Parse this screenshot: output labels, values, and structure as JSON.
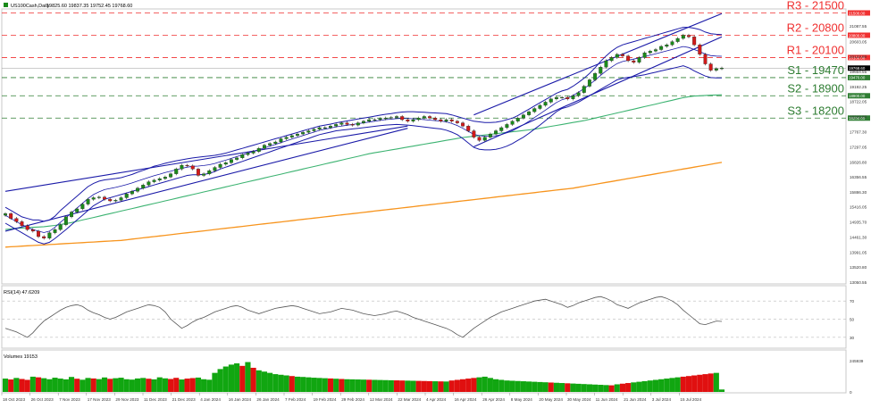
{
  "header": {
    "symbol_text": "US100Cash,Daily",
    "ohlc_text": "19825.60 19837.35 19752.45 19768.60",
    "icon": "chart-icon"
  },
  "colors": {
    "resistance": "#f03030",
    "support": "#2e7d32",
    "channel": "#1a1aa8",
    "bollinger": "#1a1aa8",
    "ma_green": "#3cb371",
    "ma_orange": "#f7941d",
    "candle_up": "#1a8a1a",
    "candle_down": "#d11a1a",
    "volume_up": "#11a611",
    "volume_down": "#e01010",
    "rsi_line": "#555555"
  },
  "chart_data": [
    {
      "type": "line",
      "title": "",
      "y_ticks": [
        "21087.55",
        "20603.05",
        "20133.80",
        "19664.55",
        "19192.25",
        "18722.05",
        "18249.80",
        "17767.30",
        "17297.05",
        "16826.80",
        "16356.55",
        "15886.30",
        "15416.05",
        "14935.70",
        "14461.30",
        "13991.05",
        "13520.80",
        "13050.55"
      ],
      "ylim": [
        13050.55,
        21570
      ],
      "x_tick_labels": [
        "18 Oct 2023",
        "26 Oct 2023",
        "7 Nov 2023",
        "17 Nov 2023",
        "29 Nov 2023",
        "11 Dec 2023",
        "21 Dec 2023",
        "4 Jan 2024",
        "16 Jan 2024",
        "26 Jan 2024",
        "7 Feb 2024",
        "19 Feb 2024",
        "29 Feb 2024",
        "12 Mar 2024",
        "22 Mar 2024",
        "4 Apr 2024",
        "16 Apr 2024",
        "26 Apr 2024",
        "8 May 2024",
        "20 May 2024",
        "30 May 2024",
        "11 Jun 2024",
        "21 Jun 2024",
        "3 Jul 2024",
        "15 Jul 2024"
      ],
      "levels": [
        {
          "name": "R3 - 21500",
          "tag": "21500.00",
          "value": 21500,
          "kind": "resistance"
        },
        {
          "name": "R2 - 20800",
          "tag": "20800.00",
          "value": 20800,
          "kind": "resistance"
        },
        {
          "name": "R1 - 20100",
          "tag": "20100.00",
          "value": 20100,
          "kind": "resistance"
        },
        {
          "name": "S1 - 19470",
          "tag": "19470.00",
          "value": 19470,
          "kind": "support"
        },
        {
          "name": "S2 - 18900",
          "tag": "18900.00",
          "value": 18900,
          "kind": "support"
        },
        {
          "name": "S3 - 18200",
          "tag": "18200.00",
          "value": 18200,
          "kind": "support"
        }
      ],
      "price_tag": "19768.60",
      "price_value": 19768.6,
      "closes": [
        15200,
        15050,
        14950,
        14820,
        14700,
        14650,
        14480,
        14430,
        14600,
        14700,
        14850,
        15100,
        15250,
        15350,
        15500,
        15650,
        15700,
        15720,
        15650,
        15600,
        15620,
        15700,
        15820,
        15900,
        16000,
        16100,
        16200,
        16250,
        16300,
        16350,
        16450,
        16600,
        16720,
        16700,
        16600,
        16400,
        16450,
        16550,
        16650,
        16750,
        16800,
        16900,
        16950,
        17050,
        17100,
        17150,
        17250,
        17350,
        17400,
        17450,
        17550,
        17600,
        17650,
        17700,
        17750,
        17800,
        17850,
        17900,
        17900,
        17950,
        18000,
        18050,
        18000,
        17980,
        18050,
        18100,
        18150,
        18150,
        18180,
        18200,
        18220,
        18250,
        18150,
        18100,
        18150,
        18200,
        18250,
        18200,
        18150,
        18100,
        18150,
        18100,
        18050,
        17950,
        17800,
        17600,
        17500,
        17600,
        17700,
        17800,
        17900,
        18000,
        18100,
        18200,
        18300,
        18400,
        18500,
        18600,
        18700,
        18800,
        18850,
        18850,
        18800,
        18900,
        19000,
        19200,
        19400,
        19600,
        19800,
        20000,
        20100,
        20200,
        20150,
        20000,
        19950,
        20100,
        20250,
        20300,
        20350,
        20450,
        20500,
        20600,
        20700,
        20800,
        20750,
        20500,
        20200,
        19900,
        19700,
        19750,
        19768.6
      ],
      "bb_upper": [
        15400,
        15300,
        15200,
        15100,
        15050,
        15000,
        15000,
        14960,
        15000,
        15120,
        15300,
        15450,
        15600,
        15750,
        15900,
        16050,
        16150,
        16220,
        16260,
        16280,
        16300,
        16330,
        16380,
        16430,
        16500,
        16560,
        16620,
        16690,
        16730,
        16780,
        16820,
        16860,
        16890,
        16920,
        16950,
        16970,
        16990,
        17010,
        17030,
        17060,
        17100,
        17150,
        17200,
        17250,
        17300,
        17350,
        17400,
        17450,
        17500,
        17550,
        17600,
        17650,
        17700,
        17750,
        17800,
        17850,
        17900,
        17950,
        17980,
        18010,
        18050,
        18080,
        18110,
        18140,
        18170,
        18200,
        18230,
        18260,
        18290,
        18320,
        18340,
        18370,
        18390,
        18400,
        18400,
        18390,
        18380,
        18370,
        18360,
        18350,
        18340,
        18300,
        18250,
        18200,
        18150,
        18100,
        18080,
        18060,
        18060,
        18070,
        18100,
        18150,
        18200,
        18280,
        18380,
        18480,
        18580,
        18680,
        18780,
        18880,
        18980,
        19050,
        19100,
        19200,
        19320,
        19450,
        19600,
        19780,
        19980,
        20150,
        20300,
        20420,
        20500,
        20550,
        20600,
        20650,
        20700,
        20750,
        20800,
        20850,
        20900,
        20950,
        21000,
        21050,
        21050,
        21020,
        20980,
        20900,
        20850,
        20830,
        20820
      ],
      "bb_lower": [
        14900,
        14800,
        14700,
        14600,
        14500,
        14400,
        14300,
        14250,
        14300,
        14420,
        14560,
        14700,
        14850,
        15000,
        15150,
        15300,
        15450,
        15550,
        15650,
        15700,
        15750,
        15800,
        15850,
        15900,
        15950,
        16000,
        16050,
        16100,
        16150,
        16200,
        16250,
        16300,
        16350,
        16400,
        16420,
        16420,
        16430,
        16460,
        16520,
        16600,
        16660,
        16720,
        16780,
        16840,
        16900,
        16960,
        17020,
        17080,
        17140,
        17200,
        17260,
        17320,
        17380,
        17440,
        17500,
        17560,
        17620,
        17680,
        17720,
        17760,
        17800,
        17820,
        17840,
        17860,
        17880,
        17900,
        17920,
        17940,
        17960,
        17980,
        17990,
        18000,
        17990,
        17980,
        17960,
        17940,
        17920,
        17900,
        17880,
        17860,
        17820,
        17760,
        17680,
        17560,
        17420,
        17280,
        17220,
        17200,
        17200,
        17220,
        17260,
        17320,
        17400,
        17500,
        17600,
        17720,
        17850,
        17980,
        18120,
        18260,
        18400,
        18500,
        18550,
        18620,
        18700,
        18800,
        18900,
        19000,
        19100,
        19200,
        19300,
        19400,
        19450,
        19480,
        19500,
        19530,
        19560,
        19600,
        19640,
        19680,
        19720,
        19760,
        19800,
        19840,
        19780,
        19680,
        19600,
        19520,
        19470,
        19460,
        19460
      ],
      "ma_green": [
        14700,
        14720,
        14740,
        14750,
        14760,
        14770,
        14780,
        14790,
        14810,
        14830,
        14860,
        14890,
        14920,
        14960,
        15000,
        15040,
        15080,
        15120,
        15160,
        15200,
        15240,
        15280,
        15320,
        15360,
        15400,
        15440,
        15480,
        15520,
        15560,
        15600,
        15640,
        15680,
        15720,
        15760,
        15800,
        15840,
        15880,
        15920,
        15960,
        16000,
        16040,
        16080,
        16120,
        16160,
        16200,
        16240,
        16280,
        16320,
        16360,
        16400,
        16440,
        16480,
        16520,
        16560,
        16600,
        16640,
        16680,
        16720,
        16760,
        16800,
        16840,
        16880,
        16920,
        16960,
        17000,
        17040,
        17080,
        17110,
        17140,
        17170,
        17200,
        17230,
        17260,
        17290,
        17320,
        17350,
        17380,
        17410,
        17440,
        17470,
        17500,
        17530,
        17560,
        17590,
        17610,
        17630,
        17650,
        17670,
        17690,
        17710,
        17730,
        17750,
        17770,
        17790,
        17810,
        17830,
        17850,
        17880,
        17910,
        17940,
        17970,
        18000,
        18030,
        18060,
        18090,
        18120,
        18160,
        18200,
        18240,
        18280,
        18320,
        18360,
        18400,
        18440,
        18480,
        18520,
        18560,
        18600,
        18640,
        18680,
        18720,
        18760,
        18800,
        18840,
        18870,
        18890,
        18900,
        18910,
        18920,
        18925,
        18930
      ],
      "ma_orange": [
        14150,
        14160,
        14170,
        14180,
        14190,
        14200,
        14210,
        14220,
        14230,
        14240,
        14250,
        14260,
        14270,
        14280,
        14290,
        14300,
        14310,
        14320,
        14330,
        14340,
        14350,
        14360,
        14380,
        14400,
        14420,
        14440,
        14460,
        14480,
        14500,
        14520,
        14540,
        14560,
        14580,
        14600,
        14620,
        14640,
        14660,
        14680,
        14700,
        14720,
        14740,
        14760,
        14780,
        14800,
        14820,
        14840,
        14860,
        14880,
        14900,
        14920,
        14940,
        14960,
        14980,
        15000,
        15020,
        15040,
        15060,
        15080,
        15100,
        15120,
        15140,
        15160,
        15180,
        15200,
        15220,
        15240,
        15260,
        15280,
        15300,
        15320,
        15340,
        15360,
        15380,
        15400,
        15420,
        15440,
        15460,
        15480,
        15500,
        15520,
        15540,
        15560,
        15580,
        15600,
        15620,
        15640,
        15660,
        15680,
        15700,
        15720,
        15740,
        15760,
        15780,
        15800,
        15820,
        15840,
        15860,
        15880,
        15900,
        15920,
        15940,
        15960,
        15980,
        16000,
        16030,
        16060,
        16090,
        16120,
        16150,
        16180,
        16210,
        16240,
        16270,
        16300,
        16330,
        16360,
        16390,
        16420,
        16450,
        16480,
        16510,
        16540,
        16570,
        16600,
        16630,
        16660,
        16690,
        16720,
        16750,
        16780,
        16810
      ],
      "channel_1": {
        "x": [
          0,
          73
        ],
        "y": [
          15900,
          17950
        ]
      },
      "channel_1_lower": {
        "x": [
          0,
          73
        ],
        "y": [
          14650,
          17880
        ]
      },
      "channel_2_upper": {
        "x": [
          85,
          130
        ],
        "y": [
          18300,
          21480
        ]
      },
      "channel_2_lower": {
        "x": [
          85,
          130
        ],
        "y": [
          17300,
          20750
        ]
      }
    },
    {
      "type": "line",
      "title": "RSI(14) 47.6209",
      "y_ticks": [
        "70",
        "50",
        "30"
      ],
      "ylim": [
        20,
        85
      ],
      "values": [
        40,
        38,
        36,
        33,
        30,
        35,
        42,
        48,
        52,
        56,
        60,
        63,
        65,
        66,
        64,
        60,
        57,
        55,
        52,
        50,
        52,
        55,
        58,
        60,
        62,
        64,
        66,
        65,
        63,
        58,
        50,
        45,
        40,
        43,
        47,
        50,
        52,
        55,
        58,
        60,
        62,
        64,
        65,
        63,
        60,
        58,
        56,
        58,
        60,
        62,
        63,
        64,
        65,
        64,
        62,
        60,
        58,
        56,
        57,
        58,
        60,
        62,
        61,
        60,
        58,
        56,
        55,
        54,
        55,
        56,
        58,
        59,
        57,
        55,
        52,
        50,
        48,
        46,
        44,
        42,
        40,
        37,
        33,
        30,
        35,
        40,
        44,
        48,
        52,
        55,
        58,
        60,
        62,
        64,
        66,
        68,
        70,
        71,
        72,
        70,
        68,
        66,
        63,
        65,
        68,
        70,
        72,
        74,
        75,
        73,
        70,
        66,
        64,
        62,
        65,
        68,
        70,
        72,
        74,
        75,
        73,
        70,
        66,
        60,
        55,
        50,
        45,
        44,
        46,
        48,
        47.6
      ]
    },
    {
      "type": "bar",
      "title": "Volumes 19153",
      "y_ticks": [
        "245939",
        "0"
      ],
      "ylim": [
        0,
        245939
      ],
      "values": [
        105000,
        98000,
        110000,
        102000,
        95000,
        120000,
        115000,
        108000,
        100000,
        112000,
        105000,
        99000,
        118000,
        104000,
        96000,
        110000,
        106000,
        101000,
        114000,
        103000,
        108000,
        112000,
        100000,
        97000,
        106000,
        110000,
        104000,
        99000,
        115000,
        107000,
        102000,
        111000,
        98000,
        105000,
        109000,
        113000,
        100000,
        96000,
        150000,
        180000,
        200000,
        215000,
        225000,
        205000,
        235000,
        190000,
        170000,
        160000,
        150000,
        140000,
        135000,
        130000,
        125000,
        120000,
        118000,
        115000,
        112000,
        110000,
        108000,
        106000,
        104000,
        102000,
        100000,
        99000,
        98000,
        97000,
        96000,
        95000,
        94000,
        93000,
        92000,
        91000,
        90000,
        89000,
        88000,
        87000,
        86000,
        85000,
        84000,
        83000,
        82000,
        90000,
        95000,
        100000,
        105000,
        110000,
        115000,
        120000,
        110000,
        100000,
        95000,
        90000,
        88000,
        86000,
        84000,
        82000,
        80000,
        78000,
        76000,
        74000,
        72000,
        70000,
        68000,
        66000,
        64000,
        62000,
        60000,
        58000,
        56000,
        54000,
        52000,
        60000,
        65000,
        70000,
        75000,
        80000,
        85000,
        90000,
        95000,
        100000,
        105000,
        110000,
        115000,
        120000,
        125000,
        130000,
        135000,
        140000,
        145000,
        150000,
        19153
      ],
      "up": [
        1,
        0,
        1,
        0,
        0,
        1,
        0,
        1,
        1,
        1,
        1,
        1,
        1,
        0,
        1,
        1,
        0,
        1,
        1,
        0,
        1,
        1,
        1,
        1,
        1,
        1,
        0,
        1,
        1,
        1,
        0,
        0,
        1,
        0,
        0,
        1,
        1,
        1,
        1,
        1,
        1,
        1,
        1,
        0,
        1,
        0,
        1,
        1,
        1,
        1,
        1,
        1,
        0,
        1,
        1,
        1,
        1,
        1,
        1,
        0,
        1,
        0,
        1,
        1,
        1,
        1,
        0,
        1,
        1,
        1,
        1,
        0,
        0,
        1,
        1,
        0,
        0,
        0,
        1,
        0,
        1,
        0,
        0,
        0,
        0,
        0,
        1,
        1,
        1,
        1,
        1,
        1,
        1,
        1,
        1,
        1,
        1,
        1,
        1,
        0,
        1,
        1,
        0,
        1,
        1,
        1,
        1,
        1,
        1,
        1,
        0,
        1,
        0,
        0,
        1,
        1,
        1,
        1,
        1,
        1,
        1,
        1,
        1,
        0,
        0,
        0,
        0,
        0,
        0,
        1,
        1
      ]
    }
  ]
}
